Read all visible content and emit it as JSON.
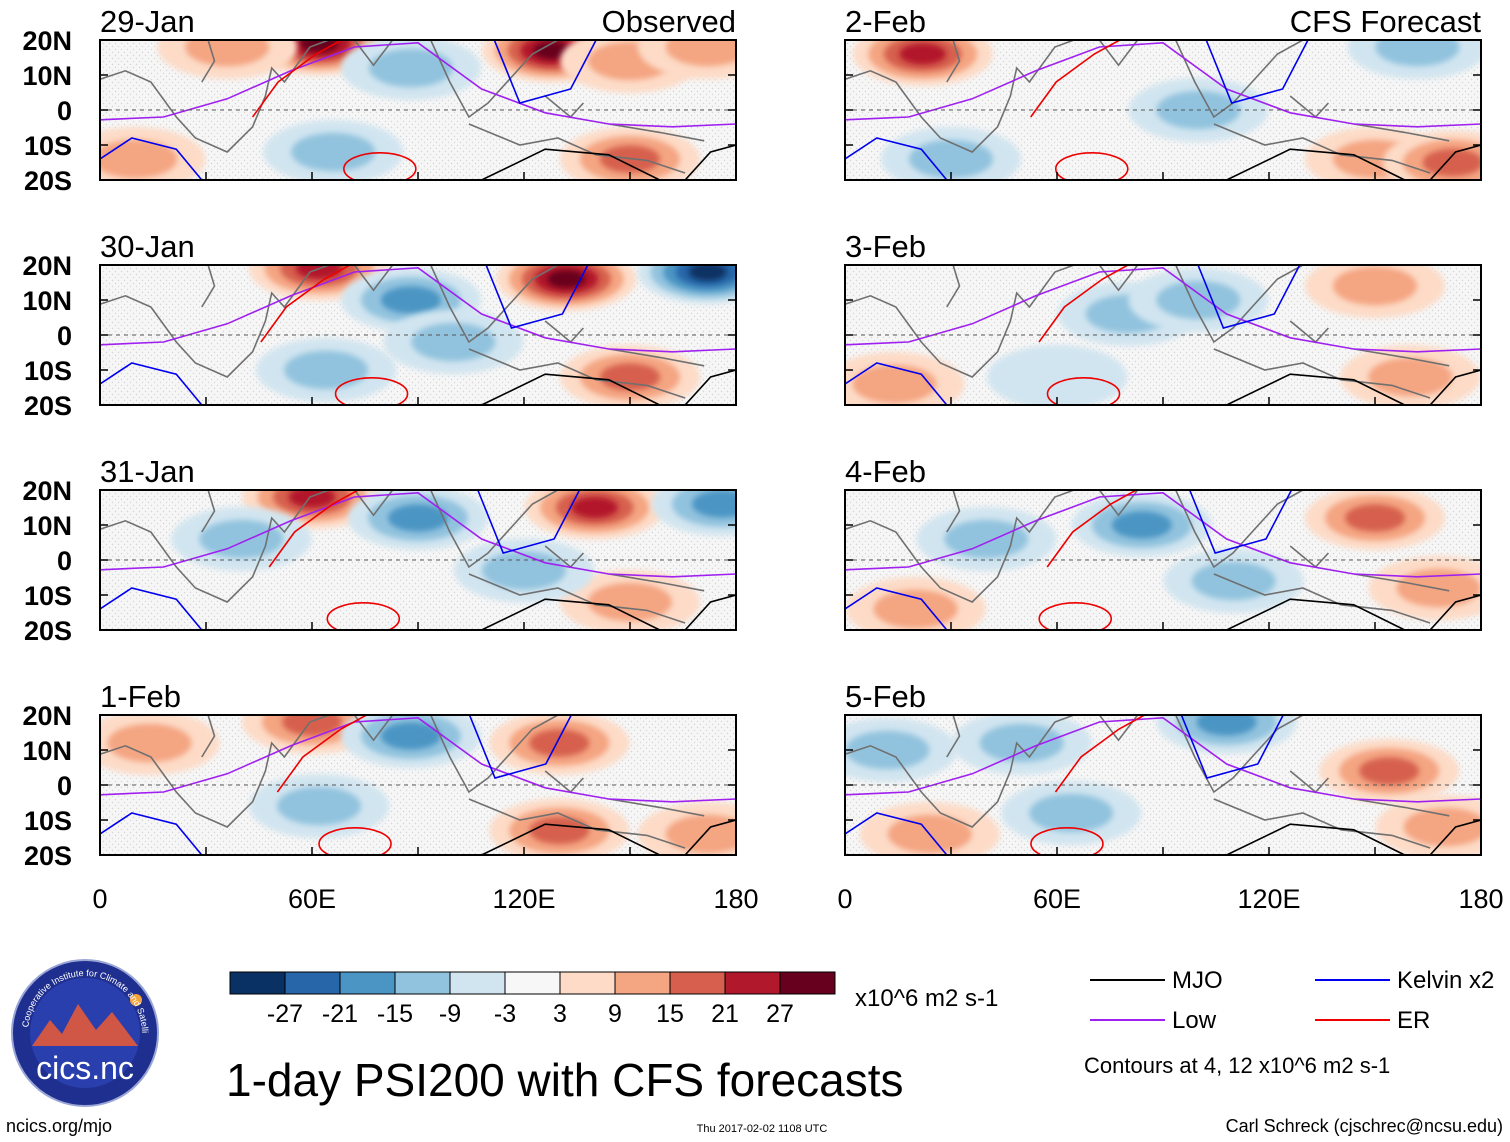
{
  "chart_data": {
    "type": "heatmap",
    "title": "1-day PSI200 with CFS forecasts",
    "columns": [
      {
        "heading": "Observed",
        "panels": [
          "29-Jan",
          "30-Jan",
          "31-Jan",
          "1-Feb"
        ]
      },
      {
        "heading": "CFS Forecast",
        "panels": [
          "2-Feb",
          "3-Feb",
          "4-Feb",
          "5-Feb"
        ]
      }
    ],
    "y_ticks": [
      "20N",
      "10N",
      "0",
      "10S",
      "20S"
    ],
    "y_values": [
      20,
      10,
      0,
      -10,
      -20
    ],
    "ylim": [
      -20,
      20
    ],
    "x_ticks": [
      "0",
      "60E",
      "120E",
      "180"
    ],
    "x_values": [
      0,
      60,
      120,
      180
    ],
    "xlim": [
      0,
      180
    ],
    "colorbar": {
      "tick_labels": [
        "-27",
        "-21",
        "-15",
        "-9",
        "-3",
        "3",
        "9",
        "15",
        "21",
        "27"
      ],
      "levels": [
        -27,
        -21,
        -15,
        -9,
        -3,
        3,
        9,
        15,
        21,
        27
      ],
      "colors": [
        "#0a3163",
        "#2766a8",
        "#4b95c4",
        "#92c3de",
        "#d1e5f0",
        "#f7f7f7",
        "#fddbc7",
        "#f4a582",
        "#d6604d",
        "#b2182b",
        "#67001f"
      ],
      "units": "x10^6 m2 s-1"
    },
    "legend": [
      {
        "label": "MJO",
        "color": "#000000"
      },
      {
        "label": "Kelvin x2",
        "color": "#0000ee"
      },
      {
        "label": "Low",
        "color": "#a020f0"
      },
      {
        "label": "ER",
        "color": "#ee0000"
      }
    ],
    "contour_note": "Contours at 4, 12 x10^6 m2 s-1",
    "blobs": [
      [
        {
          "lon": 62,
          "lat": 19,
          "v": 24
        },
        {
          "lon": 36,
          "lat": 18,
          "v": 10
        },
        {
          "lon": 128,
          "lat": 17,
          "v": 26
        },
        {
          "lon": 150,
          "lat": 14,
          "v": 10
        },
        {
          "lon": 88,
          "lat": 12,
          "v": -9
        },
        {
          "lon": 66,
          "lat": -12,
          "v": -7
        },
        {
          "lon": 150,
          "lat": -14,
          "v": 12
        },
        {
          "lon": 10,
          "lat": -14,
          "v": 9
        },
        {
          "lon": 172,
          "lat": 18,
          "v": 7
        }
      ],
      [
        {
          "lon": 62,
          "lat": 19,
          "v": 19
        },
        {
          "lon": 132,
          "lat": 16,
          "v": 27
        },
        {
          "lon": 172,
          "lat": 18,
          "v": -26
        },
        {
          "lon": 88,
          "lat": 10,
          "v": -13
        },
        {
          "lon": 64,
          "lat": -10,
          "v": -9
        },
        {
          "lon": 150,
          "lat": -12,
          "v": 13
        },
        {
          "lon": 100,
          "lat": -2,
          "v": -6
        }
      ],
      [
        {
          "lon": 60,
          "lat": 18,
          "v": 18
        },
        {
          "lon": 140,
          "lat": 15,
          "v": 18
        },
        {
          "lon": 176,
          "lat": 16,
          "v": -17
        },
        {
          "lon": 90,
          "lat": 12,
          "v": -12
        },
        {
          "lon": 40,
          "lat": 6,
          "v": -7
        },
        {
          "lon": 150,
          "lat": -12,
          "v": 11
        },
        {
          "lon": 120,
          "lat": -3,
          "v": -6
        }
      ],
      [
        {
          "lon": 60,
          "lat": 18,
          "v": 15
        },
        {
          "lon": 130,
          "lat": 12,
          "v": 12
        },
        {
          "lon": 88,
          "lat": 14,
          "v": -13
        },
        {
          "lon": 14,
          "lat": 12,
          "v": 10
        },
        {
          "lon": 62,
          "lat": -6,
          "v": -8
        },
        {
          "lon": 130,
          "lat": -13,
          "v": 12
        },
        {
          "lon": 172,
          "lat": -14,
          "v": 10
        }
      ],
      [
        {
          "lon": 22,
          "lat": 16,
          "v": 18
        },
        {
          "lon": 162,
          "lat": 18,
          "v": -9
        },
        {
          "lon": 150,
          "lat": -14,
          "v": 10
        },
        {
          "lon": 100,
          "lat": 0,
          "v": -7
        },
        {
          "lon": 172,
          "lat": -15,
          "v": 14
        },
        {
          "lon": 30,
          "lat": -14,
          "v": -6
        }
      ],
      [
        {
          "lon": 150,
          "lat": 14,
          "v": 11
        },
        {
          "lon": 80,
          "lat": 6,
          "v": -10
        },
        {
          "lon": 100,
          "lat": 10,
          "v": -8
        },
        {
          "lon": 160,
          "lat": -12,
          "v": 9
        },
        {
          "lon": 14,
          "lat": -14,
          "v": 6
        },
        {
          "lon": 60,
          "lat": -12,
          "v": -5
        }
      ],
      [
        {
          "lon": 150,
          "lat": 12,
          "v": 12
        },
        {
          "lon": 84,
          "lat": 10,
          "v": -13
        },
        {
          "lon": 40,
          "lat": 6,
          "v": -6
        },
        {
          "lon": 20,
          "lat": -14,
          "v": 9
        },
        {
          "lon": 168,
          "lat": -8,
          "v": 10
        },
        {
          "lon": 110,
          "lat": -6,
          "v": -6
        }
      ],
      [
        {
          "lon": 154,
          "lat": 4,
          "v": 16
        },
        {
          "lon": 108,
          "lat": 18,
          "v": -16
        },
        {
          "lon": 50,
          "lat": 12,
          "v": -10
        },
        {
          "lon": 12,
          "lat": 10,
          "v": -9
        },
        {
          "lon": 170,
          "lat": -12,
          "v": 11
        },
        {
          "lon": 24,
          "lat": -14,
          "v": 8
        },
        {
          "lon": 64,
          "lat": -8,
          "v": -6
        }
      ]
    ]
  },
  "footer": {
    "left": "ncics.org/mjo",
    "center": "Thu 2017-02-02 1108 UTC",
    "right": "Carl Schreck (cjschrec@ncsu.edu)"
  },
  "logo": {
    "text": "cics.nc",
    "ring_text": "Cooperative Institute for Climate and Satellites"
  }
}
